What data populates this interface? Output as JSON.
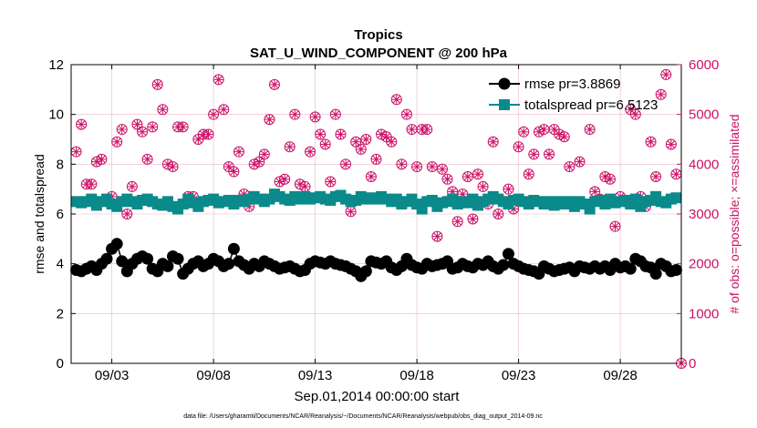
{
  "chart_data": {
    "type": "line",
    "title": "Tropics",
    "subtitle": "SAT_U_WIND_COMPONENT @ 200 hPa",
    "xlabel": "Sep.01,2014 00:00:00 start",
    "ylabel": "rmse and totalspread",
    "y2label": "# of obs: o=possible; ×=assimilated",
    "footnote": "data file: /Users/gharamti/Documents/NCAR/Reanalysis/~/Documents/NCAR/Reanalysis/webpub/obs_diag_output_2014-09.nc",
    "xlim": [
      1.0,
      31.0
    ],
    "ylim": [
      0,
      12
    ],
    "y2lim": [
      0,
      6000
    ],
    "x_ticks": [
      3,
      8,
      13,
      18,
      23,
      28
    ],
    "x_tick_labels": [
      "09/03",
      "09/08",
      "09/13",
      "09/18",
      "09/23",
      "09/28"
    ],
    "y_ticks": [
      0,
      2,
      4,
      6,
      8,
      10,
      12
    ],
    "y2_ticks": [
      0,
      1000,
      2000,
      3000,
      4000,
      5000,
      6000
    ],
    "grid": true,
    "legend_position": "top-right",
    "colors": {
      "rmse": "#000000",
      "totalspread": "#0a8a8a",
      "obs": "#cc1166",
      "grid": "#e7b7c9"
    },
    "series": [
      {
        "name": "rmse pr=3.8869",
        "x": [
          1.25,
          1.5,
          1.75,
          2.0,
          2.25,
          2.5,
          2.75,
          3.0,
          3.25,
          3.5,
          3.75,
          4.0,
          4.25,
          4.5,
          4.75,
          5.0,
          5.25,
          5.5,
          5.75,
          6.0,
          6.25,
          6.5,
          6.75,
          7.0,
          7.25,
          7.5,
          7.75,
          8.0,
          8.25,
          8.5,
          8.75,
          9.0,
          9.25,
          9.5,
          9.75,
          10.0,
          10.25,
          10.5,
          10.75,
          11.0,
          11.25,
          11.5,
          11.75,
          12.0,
          12.25,
          12.5,
          12.75,
          13.0,
          13.25,
          13.5,
          13.75,
          14.0,
          14.25,
          14.5,
          14.75,
          15.0,
          15.25,
          15.5,
          15.75,
          16.0,
          16.25,
          16.5,
          16.75,
          17.0,
          17.25,
          17.5,
          17.75,
          18.0,
          18.25,
          18.5,
          18.75,
          19.0,
          19.25,
          19.5,
          19.75,
          20.0,
          20.25,
          20.5,
          20.75,
          21.0,
          21.25,
          21.5,
          21.75,
          22.0,
          22.25,
          22.5,
          22.75,
          23.0,
          23.25,
          23.5,
          23.75,
          24.0,
          24.25,
          24.5,
          24.75,
          25.0,
          25.25,
          25.5,
          25.75,
          26.0,
          26.25,
          26.5,
          26.75,
          27.0,
          27.25,
          27.5,
          27.75,
          28.0,
          28.25,
          28.5,
          28.75,
          29.0,
          29.25,
          29.5,
          29.75,
          30.0,
          30.25,
          30.5,
          30.75
        ],
        "values": [
          3.75,
          3.7,
          3.8,
          3.9,
          3.75,
          4.0,
          4.2,
          4.6,
          4.8,
          4.1,
          3.7,
          4.0,
          4.2,
          4.3,
          4.2,
          3.8,
          3.7,
          4.0,
          3.9,
          4.3,
          4.2,
          3.6,
          3.8,
          4.0,
          4.1,
          3.9,
          4.0,
          4.2,
          4.1,
          3.9,
          4.0,
          4.6,
          4.1,
          3.95,
          3.8,
          4.0,
          3.9,
          4.1,
          4.0,
          3.9,
          3.8,
          3.85,
          3.9,
          3.8,
          3.7,
          3.75,
          4.0,
          4.1,
          4.05,
          4.0,
          4.1,
          4.0,
          3.95,
          3.9,
          3.8,
          3.7,
          3.5,
          3.7,
          4.1,
          4.05,
          4.0,
          4.1,
          3.85,
          3.75,
          3.9,
          4.2,
          3.95,
          3.85,
          3.8,
          4.0,
          3.9,
          3.95,
          4.0,
          4.1,
          3.8,
          3.85,
          4.0,
          3.9,
          3.85,
          4.0,
          3.95,
          4.1,
          3.9,
          3.8,
          3.95,
          4.4,
          4.0,
          3.9,
          3.8,
          3.75,
          3.7,
          3.6,
          3.9,
          3.8,
          3.7,
          3.75,
          3.8,
          3.85,
          3.7,
          3.9,
          3.85,
          3.8,
          3.9,
          3.8,
          3.9,
          3.75,
          4.0,
          3.85,
          3.9,
          3.8,
          4.2,
          4.1,
          3.9,
          3.85,
          3.6,
          4.0,
          3.9,
          3.7,
          3.75
        ]
      },
      {
        "name": "totalspread pr=6.5123",
        "x": [
          1.25,
          1.5,
          1.75,
          2.0,
          2.25,
          2.5,
          2.75,
          3.0,
          3.25,
          3.5,
          3.75,
          4.0,
          4.25,
          4.5,
          4.75,
          5.0,
          5.25,
          5.5,
          5.75,
          6.0,
          6.25,
          6.5,
          6.75,
          7.0,
          7.25,
          7.5,
          7.75,
          8.0,
          8.25,
          8.5,
          8.75,
          9.0,
          9.25,
          9.5,
          9.75,
          10.0,
          10.25,
          10.5,
          10.75,
          11.0,
          11.25,
          11.5,
          11.75,
          12.0,
          12.25,
          12.5,
          12.75,
          13.0,
          13.25,
          13.5,
          13.75,
          14.0,
          14.25,
          14.5,
          14.75,
          15.0,
          15.25,
          15.5,
          15.75,
          16.0,
          16.25,
          16.5,
          16.75,
          17.0,
          17.25,
          17.5,
          17.75,
          18.0,
          18.25,
          18.5,
          18.75,
          19.0,
          19.25,
          19.5,
          19.75,
          20.0,
          20.25,
          20.5,
          20.75,
          21.0,
          21.25,
          21.5,
          21.75,
          22.0,
          22.25,
          22.5,
          22.75,
          23.0,
          23.25,
          23.5,
          23.75,
          24.0,
          24.25,
          24.5,
          24.75,
          25.0,
          25.25,
          25.5,
          25.75,
          26.0,
          26.25,
          26.5,
          26.75,
          27.0,
          27.25,
          27.5,
          27.75,
          28.0,
          28.25,
          28.5,
          28.75,
          29.0,
          29.25,
          29.5,
          29.75,
          30.0,
          30.25,
          30.5,
          30.75
        ],
        "values": [
          6.5,
          6.45,
          6.5,
          6.6,
          6.35,
          6.5,
          6.6,
          6.4,
          6.3,
          6.5,
          6.6,
          6.5,
          6.4,
          6.55,
          6.6,
          6.5,
          6.4,
          6.35,
          6.5,
          6.3,
          6.2,
          6.4,
          6.6,
          6.45,
          6.3,
          6.5,
          6.55,
          6.6,
          6.45,
          6.5,
          6.55,
          6.4,
          6.55,
          6.5,
          6.6,
          6.7,
          6.6,
          6.5,
          6.6,
          6.8,
          6.7,
          6.6,
          6.55,
          6.7,
          6.6,
          6.7,
          6.6,
          6.65,
          6.7,
          6.6,
          6.55,
          6.7,
          6.75,
          6.6,
          6.5,
          6.55,
          6.7,
          6.6,
          6.65,
          6.6,
          6.7,
          6.6,
          6.5,
          6.6,
          6.4,
          6.5,
          6.6,
          6.4,
          6.2,
          6.5,
          6.55,
          6.3,
          6.45,
          6.5,
          6.6,
          6.4,
          6.5,
          6.45,
          6.6,
          6.35,
          6.5,
          6.6,
          6.7,
          6.6,
          6.5,
          6.4,
          6.55,
          6.6,
          6.5,
          6.4,
          6.55,
          6.5,
          6.4,
          6.5,
          6.35,
          6.5,
          6.4,
          6.5,
          6.3,
          6.5,
          6.4,
          6.2,
          6.5,
          6.55,
          6.4,
          6.6,
          6.45,
          6.5,
          6.55,
          6.4,
          6.6,
          6.3,
          6.5,
          6.55,
          6.7,
          6.5,
          6.45,
          6.6,
          6.65
        ]
      },
      {
        "name": "# of obs",
        "axis": "right",
        "x": [
          1.25,
          1.5,
          1.75,
          2.0,
          2.25,
          2.5,
          2.75,
          3.0,
          3.25,
          3.5,
          3.75,
          4.0,
          4.25,
          4.5,
          4.75,
          5.0,
          5.25,
          5.5,
          5.75,
          6.0,
          6.25,
          6.5,
          6.75,
          7.0,
          7.25,
          7.5,
          7.75,
          8.0,
          8.25,
          8.5,
          8.75,
          9.0,
          9.25,
          9.5,
          9.75,
          10.0,
          10.25,
          10.5,
          10.75,
          11.0,
          11.25,
          11.5,
          11.75,
          12.0,
          12.25,
          12.5,
          12.75,
          13.0,
          13.25,
          13.5,
          13.75,
          14.0,
          14.25,
          14.5,
          14.75,
          15.0,
          15.25,
          15.5,
          15.75,
          16.0,
          16.25,
          16.5,
          16.75,
          17.0,
          17.25,
          17.5,
          17.75,
          18.0,
          18.25,
          18.5,
          18.75,
          19.0,
          19.25,
          19.5,
          19.75,
          20.0,
          20.25,
          20.5,
          20.75,
          21.0,
          21.25,
          21.5,
          21.75,
          22.0,
          22.25,
          22.5,
          22.75,
          23.0,
          23.25,
          23.5,
          23.75,
          24.0,
          24.25,
          24.5,
          24.75,
          25.0,
          25.25,
          25.5,
          25.75,
          26.0,
          26.25,
          26.5,
          26.75,
          27.0,
          27.25,
          27.5,
          27.75,
          28.0,
          28.25,
          28.5,
          28.75,
          29.0,
          29.25,
          29.5,
          29.75,
          30.0,
          30.25,
          30.5,
          30.75,
          31.0
        ],
        "values": [
          4250,
          4800,
          3600,
          3600,
          4050,
          4100,
          3300,
          3350,
          4450,
          4700,
          3000,
          3550,
          4800,
          4650,
          4100,
          4750,
          5600,
          5100,
          4000,
          3950,
          4750,
          4750,
          3350,
          3350,
          4500,
          4600,
          4600,
          5000,
          5700,
          5100,
          3950,
          3850,
          4250,
          3400,
          3150,
          4000,
          4050,
          4200,
          4900,
          5600,
          3650,
          3700,
          4350,
          5000,
          3600,
          3550,
          4250,
          4950,
          4600,
          4400,
          3650,
          5000,
          4600,
          4000,
          3050,
          4450,
          4300,
          4500,
          3750,
          4100,
          4600,
          4550,
          4450,
          5300,
          4000,
          5000,
          4700,
          3950,
          4700,
          4700,
          3950,
          2550,
          3900,
          3700,
          3450,
          2850,
          3400,
          3750,
          2900,
          3800,
          3550,
          3200,
          4450,
          3000,
          3250,
          3500,
          3100,
          4350,
          4650,
          3800,
          4200,
          4650,
          4700,
          4200,
          4700,
          4600,
          4550,
          3950,
          3200,
          4050,
          3200,
          4700,
          3450,
          3300,
          3750,
          3700,
          2750,
          3350,
          3250,
          5100,
          5000,
          3350,
          3150,
          4450,
          3750,
          5400,
          5800,
          4400,
          3800,
          0
        ]
      }
    ]
  }
}
